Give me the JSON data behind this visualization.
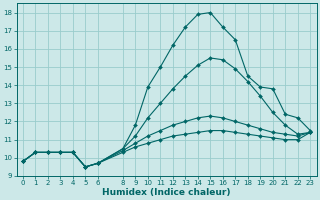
{
  "xlabel": "Humidex (Indice chaleur)",
  "bg_color": "#cce8e8",
  "grid_color": "#99cccc",
  "line_color": "#006666",
  "xlim": [
    -0.5,
    23.5
  ],
  "ylim": [
    9,
    18.5
  ],
  "xticks": [
    0,
    1,
    2,
    3,
    4,
    5,
    6,
    8,
    9,
    10,
    11,
    12,
    13,
    14,
    15,
    16,
    17,
    18,
    19,
    20,
    21,
    22,
    23
  ],
  "yticks": [
    9,
    10,
    11,
    12,
    13,
    14,
    15,
    16,
    17,
    18
  ],
  "line1_x": [
    0,
    1,
    2,
    3,
    4,
    5,
    6,
    8,
    9,
    10,
    11,
    12,
    13,
    14,
    15,
    16,
    17,
    18,
    19,
    20,
    21,
    22,
    23
  ],
  "line1_y": [
    9.8,
    10.3,
    10.3,
    10.3,
    10.3,
    9.5,
    9.7,
    10.5,
    11.8,
    13.9,
    15.0,
    16.2,
    17.2,
    17.9,
    18.0,
    17.2,
    16.5,
    14.5,
    13.9,
    13.8,
    12.4,
    12.2,
    11.5
  ],
  "line2_x": [
    0,
    1,
    2,
    3,
    4,
    5,
    6,
    8,
    9,
    10,
    11,
    12,
    13,
    14,
    15,
    16,
    17,
    18,
    19,
    20,
    21,
    22,
    23
  ],
  "line2_y": [
    9.8,
    10.3,
    10.3,
    10.3,
    10.3,
    9.5,
    9.7,
    10.5,
    11.2,
    12.2,
    13.0,
    13.8,
    14.5,
    15.1,
    15.5,
    15.4,
    14.9,
    14.2,
    13.4,
    12.5,
    11.8,
    11.3,
    11.4
  ],
  "line3_x": [
    0,
    1,
    2,
    3,
    4,
    5,
    6,
    8,
    9,
    10,
    11,
    12,
    13,
    14,
    15,
    16,
    17,
    18,
    19,
    20,
    21,
    22,
    23
  ],
  "line3_y": [
    9.8,
    10.3,
    10.3,
    10.3,
    10.3,
    9.5,
    9.7,
    10.4,
    10.8,
    11.2,
    11.5,
    11.8,
    12.0,
    12.2,
    12.3,
    12.2,
    12.0,
    11.8,
    11.6,
    11.4,
    11.3,
    11.2,
    11.4
  ],
  "line4_x": [
    0,
    1,
    2,
    3,
    4,
    5,
    6,
    8,
    9,
    10,
    11,
    12,
    13,
    14,
    15,
    16,
    17,
    18,
    19,
    20,
    21,
    22,
    23
  ],
  "line4_y": [
    9.8,
    10.3,
    10.3,
    10.3,
    10.3,
    9.5,
    9.7,
    10.3,
    10.6,
    10.8,
    11.0,
    11.2,
    11.3,
    11.4,
    11.5,
    11.5,
    11.4,
    11.3,
    11.2,
    11.1,
    11.0,
    11.0,
    11.4
  ],
  "xlabel_fontsize": 6.5,
  "tick_fontsize": 5.0,
  "marker_size": 2.0,
  "line_width": 0.8
}
